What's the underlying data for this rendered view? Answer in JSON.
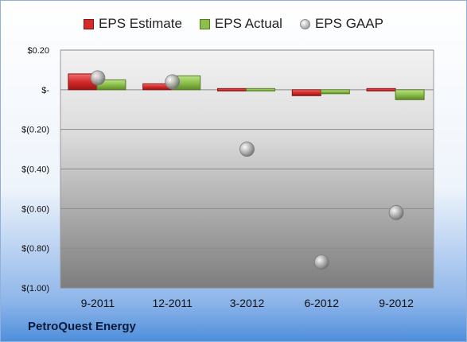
{
  "chart_data": {
    "type": "bar",
    "title": "",
    "categories": [
      "9-2011",
      "12-2011",
      "3-2012",
      "6-2012",
      "9-2012"
    ],
    "series": [
      {
        "name": "EPS Estimate",
        "kind": "bar",
        "color": "#d42a2a",
        "values": [
          0.08,
          0.03,
          0.01,
          -0.03,
          0.01
        ]
      },
      {
        "name": "EPS Actual",
        "kind": "bar",
        "color": "#8cc04a",
        "values": [
          0.05,
          0.07,
          0.0,
          -0.02,
          -0.05
        ]
      },
      {
        "name": "EPS GAAP",
        "kind": "marker",
        "color": "#a8a8a8",
        "values": [
          0.06,
          0.04,
          -0.3,
          -0.87,
          -0.62
        ]
      }
    ],
    "yticks": [
      {
        "value": 0.2,
        "label": "$0.20"
      },
      {
        "value": 0.0,
        "label": "$-"
      },
      {
        "value": -0.2,
        "label": "$(0.20)"
      },
      {
        "value": -0.4,
        "label": "$(0.40)"
      },
      {
        "value": -0.6,
        "label": "$(0.60)"
      },
      {
        "value": -0.8,
        "label": "$(0.80)"
      },
      {
        "value": -1.0,
        "label": "$(1.00)"
      }
    ],
    "ylim": [
      -1.0,
      0.2
    ],
    "grid": true,
    "legend_position": "top"
  },
  "footer": {
    "company": "PetroQuest Energy"
  }
}
